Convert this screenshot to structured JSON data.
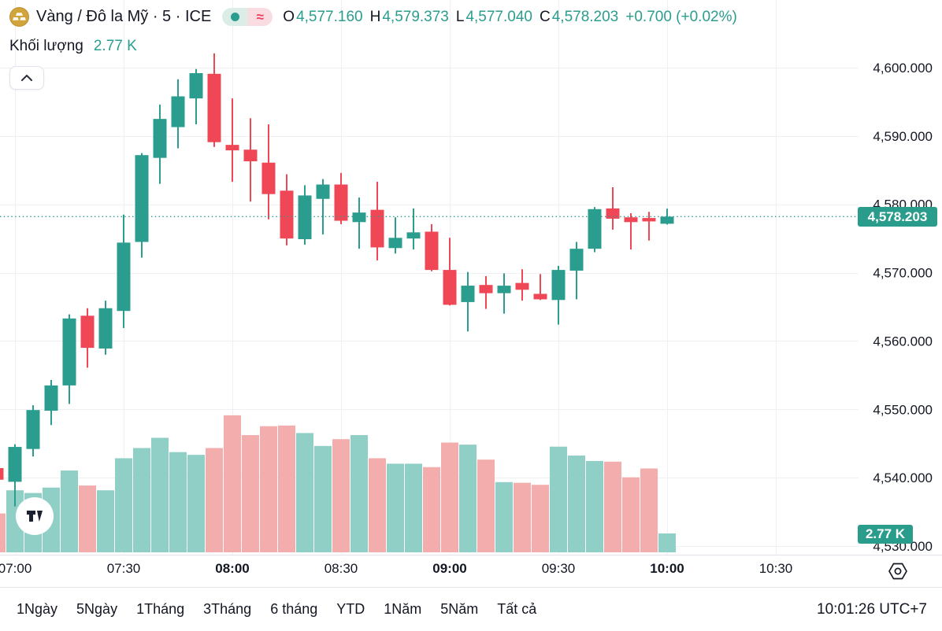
{
  "header": {
    "symbol_title": "Vàng / Đô la Mỹ · 5 · ICE",
    "status_pill": {
      "approx_symbol": "≈"
    },
    "ohlc": [
      {
        "label": "O",
        "value": "4,577.160"
      },
      {
        "label": "H",
        "value": "4,579.373"
      },
      {
        "label": "L",
        "value": "4,577.040"
      },
      {
        "label": "C",
        "value": "4,578.203"
      }
    ],
    "change": "+0.700 (+0.02%)",
    "indicator": {
      "label": "Khối lượng",
      "value": "2.77 K"
    }
  },
  "price_axis": {
    "labels": [
      "4,600.000",
      "4,590.000",
      "4,580.000",
      "4,570.000",
      "4,560.000",
      "4,550.000",
      "4,540.000",
      "4,530.000"
    ],
    "current_price_badge": "4,578.203",
    "volume_badge": "2.77 K"
  },
  "time_axis": {
    "labels": [
      {
        "text": "07:00",
        "bold": false
      },
      {
        "text": "07:30",
        "bold": false
      },
      {
        "text": "08:00",
        "bold": true
      },
      {
        "text": "08:30",
        "bold": false
      },
      {
        "text": "09:00",
        "bold": true
      },
      {
        "text": "09:30",
        "bold": false
      },
      {
        "text": "10:00",
        "bold": true
      },
      {
        "text": "10:30",
        "bold": false
      }
    ]
  },
  "toolbar": {
    "ranges": [
      "1Ngày",
      "5Ngày",
      "1Tháng",
      "3Tháng",
      "6 tháng",
      "YTD",
      "1Năm",
      "5Năm",
      "Tất cả"
    ],
    "clock": "10:01:26 UTC+7"
  },
  "colors": {
    "up": "#2a9d8e",
    "down": "#ef4756",
    "volume_up": "#90cfc6",
    "volume_down": "#f3adac",
    "grid": "#eef0f4",
    "separator": "#e0e3eb",
    "text": "#131722",
    "accent_badge": "#2a9c8c",
    "dotted_price_line": "#2a9d8e"
  },
  "chart_data": {
    "type": "candlestick",
    "title": "Vàng / Đô la Mỹ",
    "interval": "5",
    "exchange": "ICE",
    "legend_values": {
      "open": 4577.16,
      "high": 4579.373,
      "low": 4577.04,
      "close": 4578.203,
      "change": 0.7,
      "change_pct": 0.02,
      "volume_k": 2.77
    },
    "y_axis": {
      "min": 4530,
      "max": 4600,
      "grid_step": 10,
      "side": "right"
    },
    "x_axis": {
      "tick_labels": [
        "07:00",
        "07:30",
        "08:00",
        "08:30",
        "09:00",
        "09:30",
        "10:00",
        "10:30"
      ],
      "interval_minutes": 5,
      "first_candle_time": "06:55"
    },
    "current_price": 4578.203,
    "grid": true,
    "volume_unit": "K",
    "candles": [
      {
        "time": "06:55",
        "o": 4541.4,
        "h": 4541.9,
        "l": 4538.9,
        "c": 4539.7,
        "v": 5.7
      },
      {
        "time": "07:00",
        "o": 4539.4,
        "h": 4544.9,
        "l": 4535.8,
        "c": 4544.5,
        "v": 9.1
      },
      {
        "time": "07:05",
        "o": 4544.2,
        "h": 4550.6,
        "l": 4543.1,
        "c": 4549.9,
        "v": 8.7
      },
      {
        "time": "07:10",
        "o": 4549.8,
        "h": 4554.3,
        "l": 4547.7,
        "c": 4553.5,
        "v": 9.5
      },
      {
        "time": "07:15",
        "o": 4553.5,
        "h": 4563.9,
        "l": 4550.8,
        "c": 4563.3,
        "v": 12.0
      },
      {
        "time": "07:20",
        "o": 4563.7,
        "h": 4564.8,
        "l": 4556.1,
        "c": 4559.0,
        "v": 9.8
      },
      {
        "time": "07:25",
        "o": 4558.9,
        "h": 4565.9,
        "l": 4558.0,
        "c": 4564.8,
        "v": 9.1
      },
      {
        "time": "07:30",
        "o": 4564.4,
        "h": 4578.5,
        "l": 4561.9,
        "c": 4574.4,
        "v": 13.8
      },
      {
        "time": "07:35",
        "o": 4574.5,
        "h": 4587.5,
        "l": 4572.2,
        "c": 4587.2,
        "v": 15.3
      },
      {
        "time": "07:40",
        "o": 4586.8,
        "h": 4594.6,
        "l": 4583.0,
        "c": 4592.5,
        "v": 16.8
      },
      {
        "time": "07:45",
        "o": 4591.3,
        "h": 4598.3,
        "l": 4588.2,
        "c": 4595.8,
        "v": 14.7
      },
      {
        "time": "07:50",
        "o": 4595.5,
        "h": 4599.8,
        "l": 4591.7,
        "c": 4599.2,
        "v": 14.3
      },
      {
        "time": "07:55",
        "o": 4599.1,
        "h": 4602.1,
        "l": 4588.4,
        "c": 4589.1,
        "v": 15.3
      },
      {
        "time": "08:00",
        "o": 4588.7,
        "h": 4595.5,
        "l": 4583.3,
        "c": 4587.9,
        "v": 20.1
      },
      {
        "time": "08:05",
        "o": 4588.0,
        "h": 4592.6,
        "l": 4580.4,
        "c": 4586.3,
        "v": 17.2
      },
      {
        "time": "08:10",
        "o": 4586.1,
        "h": 4591.7,
        "l": 4577.8,
        "c": 4581.5,
        "v": 18.5
      },
      {
        "time": "08:15",
        "o": 4582.0,
        "h": 4584.4,
        "l": 4574.0,
        "c": 4575.0,
        "v": 18.6
      },
      {
        "time": "08:20",
        "o": 4574.9,
        "h": 4582.8,
        "l": 4574.1,
        "c": 4581.3,
        "v": 17.5
      },
      {
        "time": "08:25",
        "o": 4580.8,
        "h": 4583.7,
        "l": 4575.6,
        "c": 4582.9,
        "v": 15.6
      },
      {
        "time": "08:30",
        "o": 4582.9,
        "h": 4584.6,
        "l": 4577.1,
        "c": 4577.6,
        "v": 16.6
      },
      {
        "time": "08:35",
        "o": 4577.4,
        "h": 4581.0,
        "l": 4573.5,
        "c": 4578.8,
        "v": 17.2
      },
      {
        "time": "08:40",
        "o": 4579.2,
        "h": 4583.3,
        "l": 4571.8,
        "c": 4573.7,
        "v": 13.8
      },
      {
        "time": "08:45",
        "o": 4573.6,
        "h": 4578.1,
        "l": 4572.8,
        "c": 4575.1,
        "v": 13.0
      },
      {
        "time": "08:50",
        "o": 4575.0,
        "h": 4579.4,
        "l": 4573.4,
        "c": 4575.9,
        "v": 13.0
      },
      {
        "time": "08:55",
        "o": 4576.0,
        "h": 4577.1,
        "l": 4570.2,
        "c": 4570.4,
        "v": 12.5
      },
      {
        "time": "09:00",
        "o": 4570.4,
        "h": 4575.1,
        "l": 4565.2,
        "c": 4565.3,
        "v": 16.1
      },
      {
        "time": "09:05",
        "o": 4565.7,
        "h": 4570.1,
        "l": 4561.4,
        "c": 4568.1,
        "v": 15.8
      },
      {
        "time": "09:10",
        "o": 4568.2,
        "h": 4569.5,
        "l": 4564.7,
        "c": 4567.0,
        "v": 13.6
      },
      {
        "time": "09:15",
        "o": 4567.0,
        "h": 4569.9,
        "l": 4564.0,
        "c": 4568.1,
        "v": 10.3
      },
      {
        "time": "09:20",
        "o": 4568.5,
        "h": 4570.5,
        "l": 4565.9,
        "c": 4567.5,
        "v": 10.2
      },
      {
        "time": "09:25",
        "o": 4566.9,
        "h": 4569.8,
        "l": 4566.0,
        "c": 4566.1,
        "v": 9.9
      },
      {
        "time": "09:30",
        "o": 4566.0,
        "h": 4571.0,
        "l": 4562.4,
        "c": 4570.4,
        "v": 15.5
      },
      {
        "time": "09:35",
        "o": 4570.3,
        "h": 4574.5,
        "l": 4566.1,
        "c": 4573.5,
        "v": 14.2
      },
      {
        "time": "09:40",
        "o": 4573.5,
        "h": 4579.6,
        "l": 4573.0,
        "c": 4579.3,
        "v": 13.4
      },
      {
        "time": "09:45",
        "o": 4579.4,
        "h": 4582.5,
        "l": 4576.3,
        "c": 4577.9,
        "v": 13.3
      },
      {
        "time": "09:50",
        "o": 4578.1,
        "h": 4578.7,
        "l": 4573.4,
        "c": 4577.4,
        "v": 11.0
      },
      {
        "time": "09:55",
        "o": 4578.0,
        "h": 4578.9,
        "l": 4574.7,
        "c": 4577.5,
        "v": 12.3
      },
      {
        "time": "10:00",
        "o": 4577.16,
        "h": 4579.373,
        "l": 4577.04,
        "c": 4578.203,
        "v": 2.77
      }
    ]
  }
}
